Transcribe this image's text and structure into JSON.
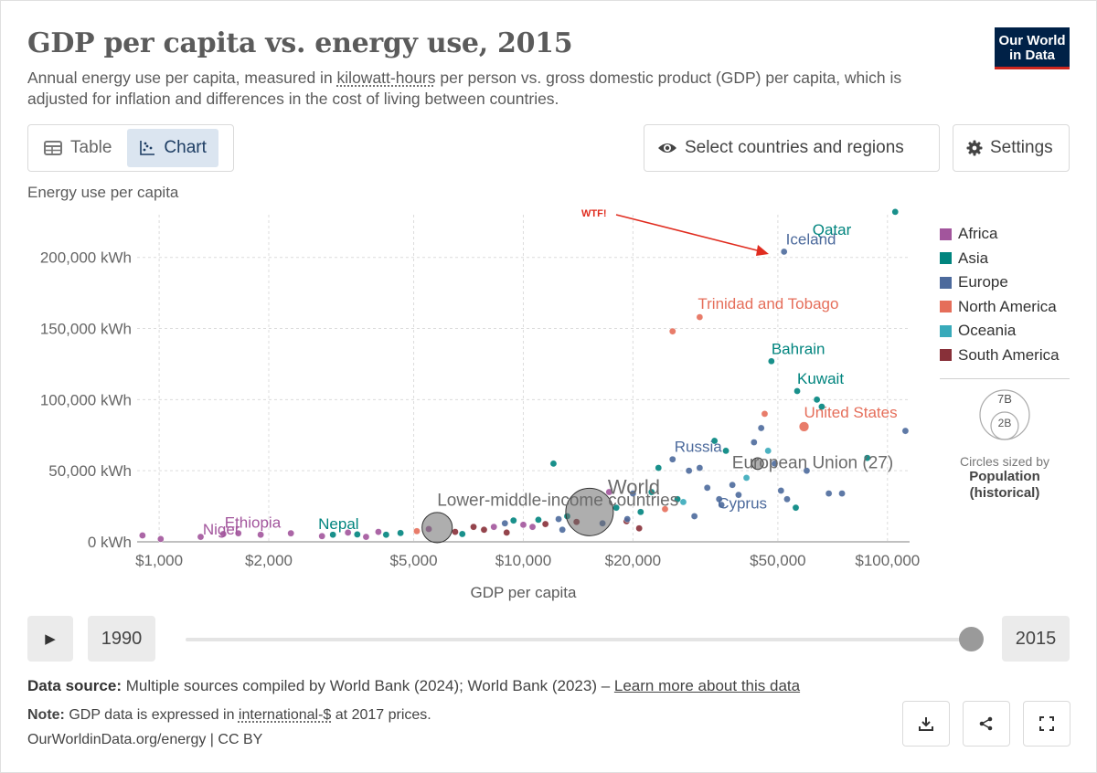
{
  "title": "GDP per capita vs. energy use, 2015",
  "subtitle": {
    "part1": "Annual energy use per capita, measured in ",
    "link": "kilowatt-hours",
    "part2": " per person vs. gross domestic product (GDP) per capita, which is adjusted for inflation and differences in the cost of living between countries."
  },
  "logo": {
    "line1": "Our World",
    "line2": "in Data"
  },
  "tabs": {
    "table": "Table",
    "chart": "Chart"
  },
  "buttons": {
    "select": "Select countries and regions",
    "settings": "Settings"
  },
  "timeline": {
    "start_year": "1990",
    "end_year": "2015",
    "position": 1.0
  },
  "footer": {
    "source_label": "Data source:",
    "source_text": " Multiple sources compiled by World Bank (2024); World Bank (2023) – ",
    "source_link": "Learn more about this data",
    "note_label": "Note:",
    "note_text1": " GDP data is expressed in ",
    "note_link": "international-$",
    "note_text2": " at 2017 prices.",
    "credit": "OurWorldinData.org/energy | CC BY"
  },
  "colors": {
    "Africa": "#a2559c",
    "Asia": "#00847e",
    "Europe": "#4c6a9c",
    "North America": "#e56e5a",
    "Oceania": "#38aaba",
    "South America": "#883039",
    "aggregate": "#6b6b6b",
    "annotation": "#e02c1f"
  },
  "chart_data": {
    "type": "scatter",
    "xscale": "log",
    "xlabel": "GDP per capita",
    "ylabel": "Energy use per capita",
    "xlim": [
      870,
      115000
    ],
    "ylim": [
      0,
      230000
    ],
    "xticks": [
      {
        "v": 1000,
        "label": "$1,000"
      },
      {
        "v": 2000,
        "label": "$2,000"
      },
      {
        "v": 5000,
        "label": "$5,000"
      },
      {
        "v": 10000,
        "label": "$10,000"
      },
      {
        "v": 20000,
        "label": "$20,000"
      },
      {
        "v": 50000,
        "label": "$50,000"
      },
      {
        "v": 100000,
        "label": "$100,000"
      }
    ],
    "yticks": [
      {
        "v": 0,
        "label": "0 kWh"
      },
      {
        "v": 50000,
        "label": "50,000 kWh"
      },
      {
        "v": 100000,
        "label": "100,000 kWh"
      },
      {
        "v": 150000,
        "label": "150,000 kWh"
      },
      {
        "v": 200000,
        "label": "200,000 kWh"
      }
    ],
    "legend": [
      "Africa",
      "Asia",
      "Europe",
      "North America",
      "Oceania",
      "South America"
    ],
    "size_legend": {
      "big": "7B",
      "small": "2B",
      "label": "Circles sized by",
      "bold1": "Population",
      "bold2": "(historical)"
    },
    "annotation": {
      "text": "WTF!"
    },
    "labeled_points": [
      {
        "name": "Qatar",
        "x": 105000,
        "y": 232000,
        "region": "Asia",
        "pop": 2.5
      },
      {
        "name": "Iceland",
        "x": 52000,
        "y": 204000,
        "region": "Europe",
        "pop": 0.33
      },
      {
        "name": "Trinidad and Tobago",
        "x": 30500,
        "y": 158000,
        "region": "North America",
        "pop": 1.4
      },
      {
        "name": "Bahrain",
        "x": 48000,
        "y": 127000,
        "region": "Asia",
        "pop": 1.4
      },
      {
        "name": "Kuwait",
        "x": 56500,
        "y": 106000,
        "region": "Asia",
        "pop": 3.8
      },
      {
        "name": "United States",
        "x": 59000,
        "y": 81000,
        "region": "North America",
        "pop": 320
      },
      {
        "name": "Russia",
        "x": 25700,
        "y": 58000,
        "region": "Europe",
        "pop": 144
      },
      {
        "name": "European Union (27)",
        "x": 44000,
        "y": 55000,
        "region": "aggregate",
        "pop": 445
      },
      {
        "name": "World",
        "x": 15200,
        "y": 21000,
        "region": "aggregate",
        "pop": 7400
      },
      {
        "name": "Lower-middle-income countries",
        "x": 5800,
        "y": 10000,
        "region": "aggregate",
        "pop": 3000
      },
      {
        "name": "Cyprus",
        "x": 35000,
        "y": 26000,
        "region": "Europe",
        "pop": 1.2
      },
      {
        "name": "Nepal",
        "x": 3000,
        "y": 5000,
        "region": "Asia",
        "pop": 28
      },
      {
        "name": "Ethiopia",
        "x": 1650,
        "y": 6000,
        "region": "Africa",
        "pop": 100
      },
      {
        "name": "Niger",
        "x": 1010,
        "y": 2000,
        "region": "Africa",
        "pop": 20
      }
    ],
    "points": [
      {
        "x": 900,
        "y": 4500,
        "r": "Africa"
      },
      {
        "x": 1300,
        "y": 3500,
        "r": "Africa"
      },
      {
        "x": 1500,
        "y": 5500,
        "r": "Africa"
      },
      {
        "x": 1900,
        "y": 5000,
        "r": "Africa"
      },
      {
        "x": 2300,
        "y": 6000,
        "r": "Africa"
      },
      {
        "x": 2800,
        "y": 4000,
        "r": "Africa"
      },
      {
        "x": 3300,
        "y": 6500,
        "r": "Africa"
      },
      {
        "x": 3700,
        "y": 3500,
        "r": "Africa"
      },
      {
        "x": 4000,
        "y": 7000,
        "r": "Africa"
      },
      {
        "x": 4200,
        "y": 5000,
        "r": "Asia"
      },
      {
        "x": 3500,
        "y": 5200,
        "r": "Asia"
      },
      {
        "x": 4600,
        "y": 6200,
        "r": "Asia"
      },
      {
        "x": 5100,
        "y": 7500,
        "r": "North America"
      },
      {
        "x": 5500,
        "y": 9000,
        "r": "Africa"
      },
      {
        "x": 6500,
        "y": 7000,
        "r": "South America"
      },
      {
        "x": 6800,
        "y": 5500,
        "r": "Asia"
      },
      {
        "x": 7300,
        "y": 10500,
        "r": "South America"
      },
      {
        "x": 7800,
        "y": 8500,
        "r": "South America"
      },
      {
        "x": 8300,
        "y": 10500,
        "r": "Africa"
      },
      {
        "x": 8900,
        "y": 13000,
        "r": "Europe"
      },
      {
        "x": 9400,
        "y": 15000,
        "r": "Asia"
      },
      {
        "x": 10000,
        "y": 12000,
        "r": "Africa"
      },
      {
        "x": 10600,
        "y": 10500,
        "r": "Africa"
      },
      {
        "x": 11000,
        "y": 15500,
        "r": "Asia"
      },
      {
        "x": 11500,
        "y": 12500,
        "r": "South America"
      },
      {
        "x": 12100,
        "y": 55000,
        "r": "Asia"
      },
      {
        "x": 12500,
        "y": 16000,
        "r": "Europe"
      },
      {
        "x": 13200,
        "y": 18000,
        "r": "Asia"
      },
      {
        "x": 14000,
        "y": 14000,
        "r": "South America"
      },
      {
        "x": 16500,
        "y": 13000,
        "r": "Europe"
      },
      {
        "x": 17200,
        "y": 35000,
        "r": "Africa"
      },
      {
        "x": 18000,
        "y": 24000,
        "r": "Asia"
      },
      {
        "x": 19200,
        "y": 14500,
        "r": "South America"
      },
      {
        "x": 20000,
        "y": 34000,
        "r": "Europe"
      },
      {
        "x": 21000,
        "y": 21000,
        "r": "Asia"
      },
      {
        "x": 22500,
        "y": 35000,
        "r": "Asia"
      },
      {
        "x": 23500,
        "y": 52000,
        "r": "Asia"
      },
      {
        "x": 24500,
        "y": 23000,
        "r": "North America"
      },
      {
        "x": 25700,
        "y": 148000,
        "r": "North America"
      },
      {
        "x": 26500,
        "y": 30000,
        "r": "Asia"
      },
      {
        "x": 27500,
        "y": 28000,
        "r": "Oceania"
      },
      {
        "x": 28500,
        "y": 50000,
        "r": "Europe"
      },
      {
        "x": 29500,
        "y": 18000,
        "r": "Europe"
      },
      {
        "x": 30500,
        "y": 52000,
        "r": "Europe"
      },
      {
        "x": 32000,
        "y": 38000,
        "r": "Europe"
      },
      {
        "x": 33500,
        "y": 71000,
        "r": "Asia"
      },
      {
        "x": 34500,
        "y": 30000,
        "r": "Europe"
      },
      {
        "x": 36000,
        "y": 64000,
        "r": "Asia"
      },
      {
        "x": 37500,
        "y": 40000,
        "r": "Europe"
      },
      {
        "x": 39000,
        "y": 33000,
        "r": "Europe"
      },
      {
        "x": 41000,
        "y": 45000,
        "r": "Oceania"
      },
      {
        "x": 43000,
        "y": 70000,
        "r": "Europe"
      },
      {
        "x": 45000,
        "y": 80000,
        "r": "Europe"
      },
      {
        "x": 46000,
        "y": 90000,
        "r": "North America"
      },
      {
        "x": 47000,
        "y": 64000,
        "r": "Oceania"
      },
      {
        "x": 49000,
        "y": 55000,
        "r": "Europe"
      },
      {
        "x": 51000,
        "y": 36000,
        "r": "Europe"
      },
      {
        "x": 53000,
        "y": 30000,
        "r": "Europe"
      },
      {
        "x": 56000,
        "y": 24000,
        "r": "Asia"
      },
      {
        "x": 60000,
        "y": 50000,
        "r": "Europe"
      },
      {
        "x": 64000,
        "y": 100000,
        "r": "Asia"
      },
      {
        "x": 66000,
        "y": 95000,
        "r": "Asia"
      },
      {
        "x": 69000,
        "y": 34000,
        "r": "Europe"
      },
      {
        "x": 75000,
        "y": 34000,
        "r": "Europe"
      },
      {
        "x": 88000,
        "y": 59000,
        "r": "Asia"
      },
      {
        "x": 112000,
        "y": 78000,
        "r": "Europe"
      },
      {
        "x": 9000,
        "y": 6500,
        "r": "South America"
      },
      {
        "x": 12800,
        "y": 8500,
        "r": "Europe"
      },
      {
        "x": 20800,
        "y": 9500,
        "r": "South America"
      },
      {
        "x": 19300,
        "y": 16000,
        "r": "Europe"
      }
    ]
  }
}
